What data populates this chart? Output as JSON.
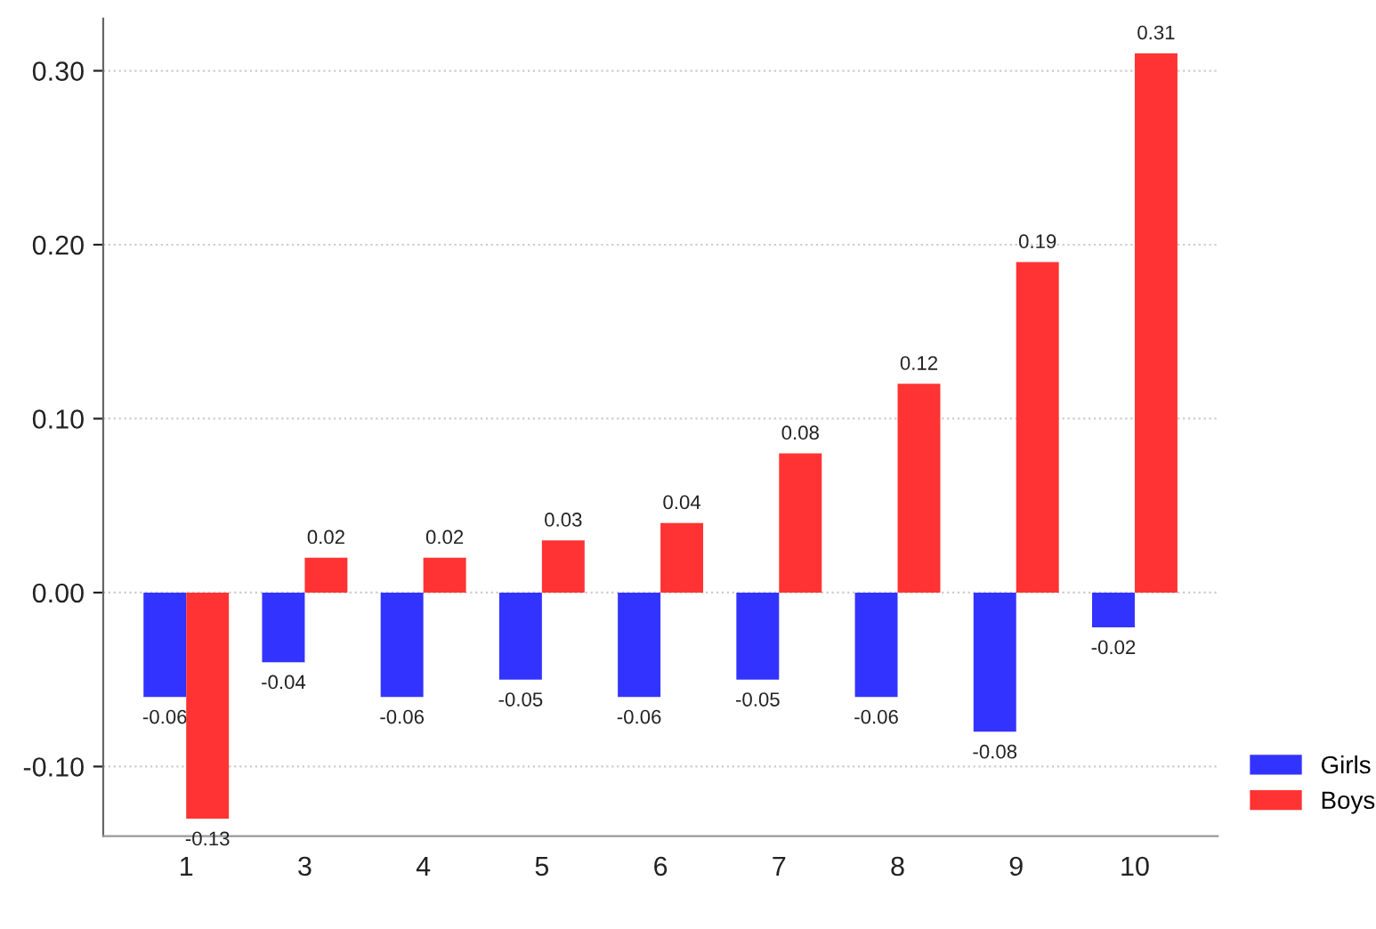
{
  "chart_data": {
    "type": "bar",
    "categories": [
      "1",
      "3",
      "4",
      "5",
      "6",
      "7",
      "8",
      "9",
      "10"
    ],
    "series": [
      {
        "name": "Girls",
        "color": "#3333ff",
        "values": [
          -0.06,
          -0.04,
          -0.06,
          -0.05,
          -0.06,
          -0.05,
          -0.06,
          -0.08,
          -0.02
        ]
      },
      {
        "name": "Boys",
        "color": "#ff3333",
        "values": [
          -0.13,
          0.02,
          0.02,
          0.03,
          0.04,
          0.08,
          0.12,
          0.19,
          0.31
        ]
      }
    ],
    "ylim": [
      -0.14,
      0.33
    ],
    "yticks": [
      {
        "value": -0.1,
        "label": "-0.10"
      },
      {
        "value": 0,
        "label": "0.00"
      },
      {
        "value": 0.1,
        "label": "0.10"
      },
      {
        "value": 0.2,
        "label": "0.20"
      },
      {
        "value": 0.3,
        "label": "0.30"
      }
    ],
    "grid": "y",
    "legend": "bottom right",
    "data_labels": true
  }
}
